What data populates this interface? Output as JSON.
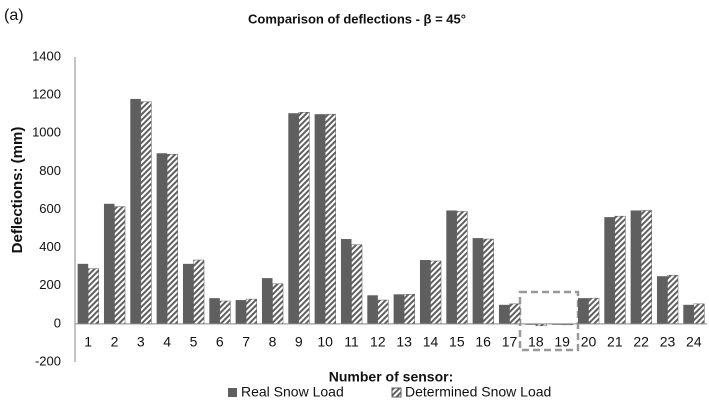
{
  "chart_data": {
    "type": "bar",
    "panel_label": "(a)",
    "title": "Comparison of deflections  - β = 45°",
    "xlabel": "Number of sensor:",
    "ylabel": "Deflections: (mm)",
    "categories": [
      "1",
      "2",
      "3",
      "4",
      "5",
      "6",
      "7",
      "8",
      "9",
      "10",
      "11",
      "12",
      "13",
      "14",
      "15",
      "16",
      "17",
      "18",
      "19",
      "20",
      "21",
      "22",
      "23",
      "24"
    ],
    "series": [
      {
        "name": "Real Snow Load",
        "color": "#5f5f5f",
        "hatched": false,
        "values": [
          315,
          630,
          1180,
          895,
          315,
          135,
          125,
          240,
          1105,
          1100,
          445,
          150,
          155,
          335,
          595,
          450,
          100,
          -5,
          -5,
          135,
          560,
          595,
          250,
          100
        ]
      },
      {
        "name": "Determined Snow Load",
        "color": "#5f5f5f",
        "hatched": true,
        "values": [
          290,
          615,
          1165,
          890,
          335,
          120,
          130,
          210,
          1110,
          1100,
          415,
          125,
          155,
          330,
          590,
          445,
          105,
          -10,
          -5,
          135,
          565,
          595,
          255,
          105
        ]
      }
    ],
    "ylim": [
      -200,
      1400
    ],
    "yticks": [
      -200,
      0,
      200,
      400,
      600,
      800,
      1000,
      1200,
      1400
    ],
    "grid": false,
    "legend": "bottom"
  }
}
